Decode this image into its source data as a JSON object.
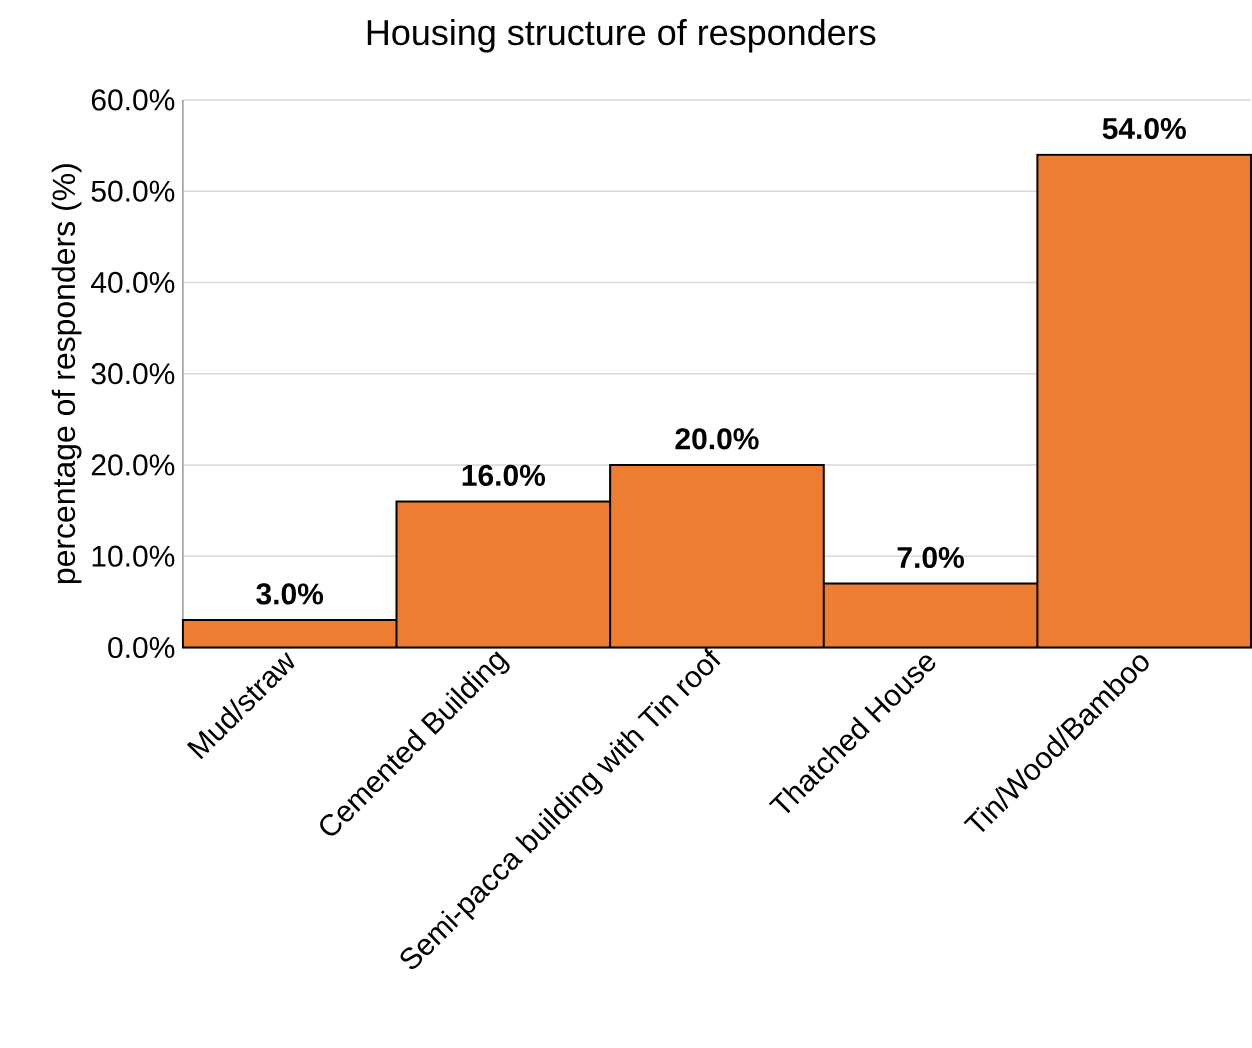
{
  "chart_data": {
    "type": "bar",
    "title": "Housing structure of responders",
    "ylabel": "percentage of responders (%)",
    "categories": [
      "Mud/straw",
      "Cemented Building",
      "Semi-pacca building with Tin roof",
      "Thatched House",
      "Tin/Wood/Bamboo"
    ],
    "values": [
      3.0,
      16.0,
      20.0,
      7.0,
      54.0
    ],
    "value_labels": [
      "3.0%",
      "16.0%",
      "20.0%",
      "7.0%",
      "54.0%"
    ],
    "color": "#ed7d31",
    "ylim": [
      0,
      60
    ],
    "yticks": [
      {
        "value": 0,
        "label": "0.0%"
      },
      {
        "value": 10,
        "label": "10.0%"
      },
      {
        "value": 20,
        "label": "20.0%"
      },
      {
        "value": 30,
        "label": "30.0%"
      },
      {
        "value": 40,
        "label": "40.0%"
      },
      {
        "value": 50,
        "label": "50.0%"
      },
      {
        "value": 60,
        "label": "60.0%"
      }
    ],
    "grid": "y"
  }
}
